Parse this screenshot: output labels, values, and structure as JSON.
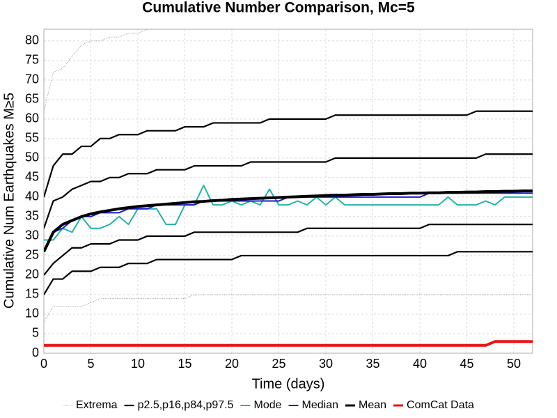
{
  "chart_data": {
    "type": "line",
    "title": "Cumulative Number Comparison, Mc=5",
    "xlabel": "Time (days)",
    "ylabel": "Cumulative Num Earthquakes M≥5",
    "xlim": [
      0,
      52
    ],
    "ylim": [
      0,
      83
    ],
    "xticks": [
      0,
      5,
      10,
      15,
      20,
      25,
      30,
      35,
      40,
      45,
      50
    ],
    "yticks": [
      0,
      5,
      10,
      15,
      20,
      25,
      30,
      35,
      40,
      45,
      50,
      55,
      60,
      65,
      70,
      75,
      80
    ],
    "grid": true,
    "legend": "bottom",
    "x": [
      0,
      1,
      2,
      3,
      4,
      5,
      6,
      7,
      8,
      9,
      10,
      11,
      12,
      13,
      14,
      15,
      16,
      17,
      18,
      19,
      20,
      21,
      22,
      23,
      24,
      25,
      26,
      27,
      28,
      29,
      30,
      31,
      32,
      33,
      34,
      35,
      36,
      37,
      38,
      39,
      40,
      41,
      42,
      43,
      44,
      45,
      46,
      47,
      48,
      49,
      50,
      51,
      52
    ],
    "series": [
      {
        "name": "Extrema",
        "color": "#999999",
        "lines": [
          [
            62,
            72,
            73,
            76,
            79,
            80,
            80,
            81,
            81,
            82,
            82,
            83,
            83,
            null,
            null,
            null,
            null,
            null,
            null,
            null,
            null,
            null,
            null,
            null,
            null,
            null,
            null,
            null,
            null,
            null,
            null,
            null,
            null,
            null,
            null,
            null,
            null,
            null,
            null,
            null,
            null,
            null,
            null,
            null,
            null,
            null,
            null,
            null,
            null,
            null,
            null,
            null,
            null
          ],
          [
            8,
            12,
            12,
            12,
            12,
            13,
            14,
            14,
            14,
            14,
            14,
            14,
            14,
            14,
            14,
            14,
            15,
            15,
            15,
            15,
            15,
            15,
            15,
            15,
            15,
            15,
            15,
            15,
            15,
            15,
            15,
            15,
            15,
            15,
            15,
            15,
            15,
            15,
            15,
            15,
            15,
            15,
            15,
            15,
            15,
            15,
            15,
            15,
            15,
            15,
            15,
            15,
            15
          ]
        ]
      },
      {
        "name": "p2.5,p16,p84,p97.5",
        "color": "#000000",
        "lines": [
          [
            15,
            19,
            19,
            21,
            21,
            21,
            22,
            22,
            22,
            23,
            23,
            23,
            24,
            24,
            24,
            24,
            24,
            24,
            24,
            24,
            24,
            25,
            25,
            25,
            25,
            25,
            25,
            25,
            25,
            25,
            25,
            25,
            25,
            25,
            25,
            25,
            25,
            25,
            25,
            25,
            25,
            25,
            25,
            25,
            26,
            26,
            26,
            26,
            26,
            26,
            26,
            26,
            26
          ],
          [
            20,
            23,
            25,
            27,
            27,
            28,
            28,
            28,
            29,
            29,
            29,
            30,
            30,
            30,
            30,
            30,
            31,
            31,
            31,
            31,
            31,
            31,
            31,
            31,
            31,
            31,
            31,
            31,
            32,
            32,
            32,
            32,
            32,
            32,
            32,
            32,
            32,
            32,
            32,
            32,
            32,
            33,
            33,
            33,
            33,
            33,
            33,
            33,
            33,
            33,
            33,
            33,
            33
          ],
          [
            32,
            39,
            40,
            42,
            43,
            44,
            44,
            45,
            45,
            46,
            46,
            46,
            47,
            47,
            47,
            47,
            48,
            48,
            48,
            48,
            48,
            48,
            49,
            49,
            49,
            49,
            49,
            49,
            49,
            49,
            49,
            50,
            50,
            50,
            50,
            50,
            50,
            50,
            50,
            50,
            50,
            50,
            50,
            50,
            50,
            50,
            50,
            51,
            51,
            51,
            51,
            51,
            51
          ],
          [
            40,
            48,
            51,
            51,
            53,
            53,
            55,
            55,
            56,
            56,
            56,
            57,
            57,
            57,
            57,
            58,
            58,
            58,
            59,
            59,
            59,
            59,
            59,
            59,
            60,
            60,
            60,
            60,
            60,
            60,
            60,
            61,
            61,
            61,
            61,
            61,
            61,
            61,
            61,
            61,
            61,
            61,
            61,
            61,
            61,
            61,
            62,
            62,
            62,
            62,
            62,
            62,
            62
          ]
        ]
      },
      {
        "name": "Mode",
        "color": "#20b2aa",
        "lines": [
          [
            29,
            29,
            32,
            31,
            35,
            32,
            32,
            33,
            35,
            33,
            37,
            37,
            37,
            33,
            33,
            38,
            38,
            43,
            38,
            38,
            39,
            38,
            39,
            38,
            42,
            38,
            38,
            39,
            38,
            40,
            38,
            40,
            38,
            38,
            38,
            38,
            38,
            38,
            38,
            38,
            38,
            38,
            38,
            40,
            38,
            38,
            38,
            39,
            38,
            40,
            40,
            40,
            40
          ]
        ]
      },
      {
        "name": "Median",
        "color": "#1a1acc",
        "lines": [
          [
            26,
            31,
            32,
            34,
            35,
            35,
            36,
            36,
            36,
            37,
            37,
            37,
            38,
            38,
            38,
            38,
            38,
            39,
            39,
            39,
            39,
            39,
            39,
            39,
            39,
            39,
            40,
            40,
            40,
            40,
            40,
            40,
            40,
            40,
            40,
            40,
            40,
            40,
            40,
            40,
            40,
            41,
            41,
            41,
            41,
            41,
            41,
            41,
            41,
            41,
            41,
            41,
            41
          ]
        ]
      },
      {
        "name": "Mean",
        "color": "#000000",
        "lines": [
          [
            26,
            31,
            33,
            34,
            35,
            35.7,
            36.2,
            36.6,
            37,
            37.3,
            37.6,
            37.8,
            38,
            38.2,
            38.4,
            38.6,
            38.8,
            38.9,
            39.1,
            39.2,
            39.4,
            39.5,
            39.6,
            39.7,
            39.8,
            39.9,
            40,
            40.1,
            40.2,
            40.3,
            40.4,
            40.5,
            40.5,
            40.6,
            40.7,
            40.7,
            40.8,
            40.9,
            40.9,
            41,
            41,
            41.1,
            41.1,
            41.2,
            41.2,
            41.3,
            41.3,
            41.4,
            41.4,
            41.5,
            41.5,
            41.6,
            41.6
          ]
        ]
      },
      {
        "name": "ComCat Data",
        "color": "#ee1111",
        "lines": [
          [
            2,
            2,
            2,
            2,
            2,
            2,
            2,
            2,
            2,
            2,
            2,
            2,
            2,
            2,
            2,
            2,
            2,
            2,
            2,
            2,
            2,
            2,
            2,
            2,
            2,
            2,
            2,
            2,
            2,
            2,
            2,
            2,
            2,
            2,
            2,
            2,
            2,
            2,
            2,
            2,
            2,
            2,
            2,
            2,
            2,
            2,
            2,
            2,
            3,
            3,
            3,
            3,
            3
          ]
        ]
      }
    ]
  }
}
